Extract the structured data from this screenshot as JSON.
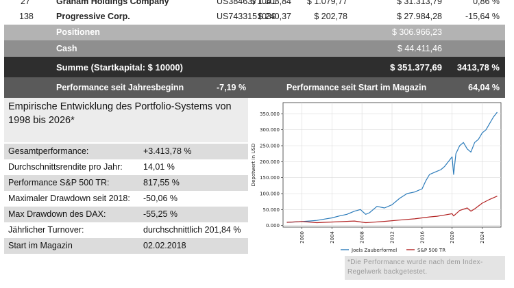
{
  "table": {
    "rows": [
      {
        "rank": "27",
        "name": "Graham Holdings Company",
        "isin": "US3846371041",
        "price1": "$ 1.108,84",
        "price2": "$ 1.079,77",
        "value": "$ 31.313,79",
        "pct": "0,86 %"
      },
      {
        "rank": "138",
        "name": "Progressive Corp.",
        "isin": "US7433151039",
        "price1": "$ 240,37",
        "price2": "$ 202,78",
        "value": "$ 27.984,28",
        "pct": "-15,64 %"
      }
    ],
    "positionen": {
      "label": "Positionen",
      "value": "$ 306.966,23"
    },
    "cash": {
      "label": "Cash",
      "value": "$ 44.411,46"
    },
    "summe": {
      "label": "Summe (Startkapital: $ 10000)",
      "value": "$ 351.377,69",
      "pct": "3413,78 %"
    },
    "perf_year": {
      "label": "Performance seit Jahresbeginn",
      "value": "-7,19 %"
    },
    "perf_start": {
      "label": "Performance seit Start im Magazin",
      "value": "64,04 %"
    }
  },
  "stats": {
    "title": "Empirische Entwicklung des Portfolio-Systems von 1998 bis 2026*",
    "rows": [
      {
        "label": "Gesamtperformance:",
        "value": "+3.413,78 %"
      },
      {
        "label": "Durchschnittsrendite pro Jahr:",
        "value": "14,01 %"
      },
      {
        "label": "Performance S&P 500 TR:",
        "value": "817,55 %"
      },
      {
        "label": "Maximaler Drawdown seit 2018:",
        "value": "-50,06 %"
      },
      {
        "label": "Max Drawdown des DAX:",
        "value": "-55,25 %"
      },
      {
        "label": "Jährlicher Turnover:",
        "value": "durchschnittlich 201,84 %"
      },
      {
        "label": "Start im Magazin",
        "value": "02.02.2018"
      }
    ]
  },
  "note": "*Die Performance wurde nach dem Index-Regelwerk backgetestet.",
  "chart_data": {
    "type": "line",
    "title": "",
    "xlabel": "",
    "ylabel": "Depotwert in USD",
    "xlim": [
      1997.5,
      2026.5
    ],
    "ylim": [
      -5000,
      385000
    ],
    "x_ticks": [
      2000,
      2004,
      2008,
      2012,
      2016,
      2020,
      2024
    ],
    "y_ticks": [
      0,
      50000,
      100000,
      150000,
      200000,
      250000,
      300000,
      350000
    ],
    "y_tick_labels": [
      "0.000",
      "50.000",
      "100.000",
      "150.000",
      "200.000",
      "250.000",
      "300.000",
      "350.000"
    ],
    "grid": true,
    "legend": "bottom",
    "series": [
      {
        "name": "Joels Zauberformel",
        "color": "#2b7bba",
        "x": [
          1998,
          1999,
          2000,
          2001,
          2002,
          2003,
          2004,
          2005,
          2006,
          2007,
          2007.8,
          2008.5,
          2009,
          2009.5,
          2010,
          2011,
          2012,
          2013,
          2014,
          2015,
          2016,
          2016.5,
          2017,
          2018,
          2018.5,
          2019,
          2020,
          2020.2,
          2020.5,
          2021,
          2021.5,
          2022,
          2022.5,
          2023,
          2023.5,
          2024,
          2024.5,
          2025,
          2025.5,
          2026
        ],
        "y": [
          10000,
          11000,
          12500,
          14000,
          16000,
          20000,
          24000,
          30000,
          35000,
          45000,
          50000,
          35000,
          40000,
          50000,
          60000,
          55000,
          65000,
          85000,
          100000,
          105000,
          115000,
          140000,
          160000,
          170000,
          175000,
          185000,
          215000,
          160000,
          225000,
          250000,
          260000,
          240000,
          230000,
          260000,
          270000,
          290000,
          300000,
          320000,
          340000,
          355000
        ]
      },
      {
        "name": "S&P 500 TR",
        "color": "#b22222",
        "x": [
          1998,
          2000,
          2002,
          2003,
          2005,
          2007,
          2008.5,
          2009,
          2011,
          2013,
          2015,
          2017,
          2018,
          2019,
          2020,
          2020.2,
          2021,
          2022,
          2022.5,
          2023,
          2024,
          2025,
          2026
        ],
        "y": [
          10000,
          12500,
          9000,
          10000,
          12000,
          14000,
          9000,
          9500,
          13000,
          17000,
          21000,
          27000,
          29000,
          33000,
          37000,
          30000,
          47000,
          55000,
          45000,
          52000,
          70000,
          82000,
          92000
        ]
      }
    ]
  }
}
